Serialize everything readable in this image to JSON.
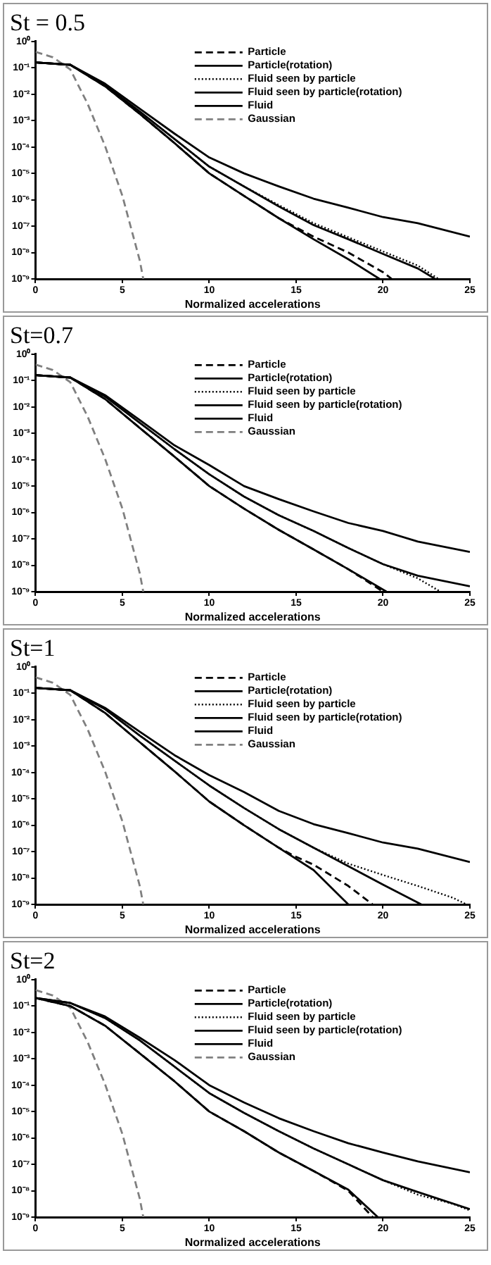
{
  "chart_data": [
    {
      "type": "line",
      "title": "St = 0.5",
      "xlabel": "Normalized accelerations",
      "xlim": [
        0,
        25
      ],
      "xticks": [
        0,
        5,
        10,
        15,
        20,
        25
      ],
      "ylim": [
        1e-09,
        1
      ],
      "yticks": [
        {
          "value": 1,
          "label": "10⁰"
        },
        {
          "value": 0.1,
          "label": "10⁻¹"
        },
        {
          "value": 0.01,
          "label": "10⁻²"
        },
        {
          "value": 0.001,
          "label": "10⁻³"
        },
        {
          "value": 0.0001,
          "label": "10⁻⁴"
        },
        {
          "value": 1e-05,
          "label": "10⁻⁵"
        },
        {
          "value": 1e-06,
          "label": "10⁻⁶"
        },
        {
          "value": 1e-07,
          "label": "10⁻⁷"
        },
        {
          "value": 1e-08,
          "label": "10⁻⁸"
        },
        {
          "value": 1e-09,
          "label": "10⁻⁹"
        }
      ],
      "log": true,
      "grid": false,
      "legend": "top right",
      "series": [
        {
          "name": "Particle",
          "color": "#000000",
          "line_style": "dashed",
          "x": [
            0,
            2,
            4,
            6,
            8,
            10,
            12,
            14,
            16,
            18,
            20,
            20.5
          ],
          "values": [
            0.16,
            0.13,
            0.02,
            0.0018,
            0.00014,
            1e-05,
            1.4e-06,
            2e-07,
            4e-08,
            1e-08,
            1.8e-09,
            1e-09
          ]
        },
        {
          "name": "Particle(rotation)",
          "color": "#000000",
          "line_style": "solid",
          "x": [
            0,
            2,
            4,
            6,
            8,
            10,
            12,
            14,
            16,
            18,
            19.8
          ],
          "values": [
            0.16,
            0.13,
            0.02,
            0.0018,
            0.00014,
            1e-05,
            1.4e-06,
            2e-07,
            3.2e-08,
            5.6e-09,
            1e-09
          ]
        },
        {
          "name": "Fluid seen by particle",
          "color": "#000000",
          "line_style": "dotted",
          "x": [
            0,
            2,
            4,
            6,
            8,
            10,
            12,
            14,
            16,
            18,
            20,
            22,
            23.2
          ],
          "values": [
            0.16,
            0.13,
            0.022,
            0.0022,
            0.0002,
            1.8e-05,
            3.2e-06,
            6.3e-07,
            1.3e-07,
            3.8e-08,
            1.1e-08,
            3.2e-09,
            1e-09
          ]
        },
        {
          "name": "Fluid seen by particle(rotation)",
          "color": "#000000",
          "line_style": "solid",
          "x": [
            0,
            2,
            4,
            6,
            8,
            10,
            12,
            14,
            16,
            18,
            20,
            22,
            23
          ],
          "values": [
            0.16,
            0.13,
            0.022,
            0.0022,
            0.0002,
            1.8e-05,
            3.2e-06,
            5.6e-07,
            1.1e-07,
            3.2e-08,
            8.9e-09,
            2.5e-09,
            1e-09
          ]
        },
        {
          "name": "Fluid",
          "color": "#000000",
          "line_style": "solid",
          "x": [
            0,
            2,
            4,
            6,
            8,
            10,
            12,
            14,
            16,
            18,
            20,
            22,
            25
          ],
          "values": [
            0.16,
            0.13,
            0.025,
            0.0028,
            0.00032,
            4e-05,
            1e-05,
            3.2e-06,
            1.1e-06,
            5e-07,
            2.2e-07,
            1.3e-07,
            4e-08
          ]
        },
        {
          "name": "Gaussian",
          "color": "#808080",
          "line_style": "dashed",
          "x": [
            0,
            1,
            2,
            3,
            4,
            5,
            6,
            6.2
          ],
          "values": [
            0.4,
            0.25,
            0.087,
            0.0043,
            0.00011,
            1.4e-06,
            5e-09,
            1e-09
          ]
        }
      ]
    },
    {
      "type": "line",
      "title": "St=0.7",
      "xlabel": "Normalized accelerations",
      "xlim": [
        0,
        25
      ],
      "xticks": [
        0,
        5,
        10,
        15,
        20,
        25
      ],
      "ylim": [
        1e-09,
        1
      ],
      "yticks": [
        {
          "value": 1,
          "label": "10⁰"
        },
        {
          "value": 0.1,
          "label": "10⁻¹"
        },
        {
          "value": 0.01,
          "label": "10⁻²"
        },
        {
          "value": 0.001,
          "label": "10⁻³"
        },
        {
          "value": 0.0001,
          "label": "10⁻⁴"
        },
        {
          "value": 1e-05,
          "label": "10⁻⁵"
        },
        {
          "value": 1e-06,
          "label": "10⁻⁶"
        },
        {
          "value": 1e-07,
          "label": "10⁻⁷"
        },
        {
          "value": 1e-08,
          "label": "10⁻⁸"
        },
        {
          "value": 1e-09,
          "label": "10⁻⁹"
        }
      ],
      "log": true,
      "grid": false,
      "legend": "top right",
      "series": [
        {
          "name": "Particle",
          "color": "#000000",
          "line_style": "dashed",
          "x": [
            0,
            2,
            4,
            6,
            8,
            10,
            12,
            14,
            16,
            18,
            20
          ],
          "values": [
            0.16,
            0.13,
            0.02,
            0.0016,
            0.00013,
            1e-05,
            1.4e-06,
            2.2e-07,
            4e-08,
            7.1e-09,
            1e-09
          ]
        },
        {
          "name": "Particle(rotation)",
          "color": "#000000",
          "line_style": "solid",
          "x": [
            0,
            2,
            4,
            6,
            8,
            10,
            12,
            14,
            16,
            18,
            20.2
          ],
          "values": [
            0.16,
            0.13,
            0.02,
            0.0016,
            0.00013,
            1e-05,
            1.4e-06,
            2.2e-07,
            4e-08,
            7.1e-09,
            1e-09
          ]
        },
        {
          "name": "Fluid seen by particle",
          "color": "#000000",
          "line_style": "dotted",
          "x": [
            0,
            2,
            4,
            6,
            8,
            10,
            12,
            14,
            16,
            18,
            20,
            22,
            23.3
          ],
          "values": [
            0.16,
            0.13,
            0.025,
            0.0025,
            0.00025,
            2.8e-05,
            4e-06,
            7.9e-07,
            2e-07,
            4.5e-08,
            1.1e-08,
            3.2e-09,
            1e-09
          ]
        },
        {
          "name": "Fluid seen by particle(rotation)",
          "color": "#000000",
          "line_style": "solid",
          "x": [
            0,
            2,
            4,
            6,
            8,
            10,
            12,
            14,
            16,
            18,
            20,
            22,
            25
          ],
          "values": [
            0.16,
            0.13,
            0.025,
            0.0025,
            0.00025,
            2.8e-05,
            4e-06,
            7.9e-07,
            2e-07,
            4.5e-08,
            1.1e-08,
            4e-09,
            1.6e-09
          ]
        },
        {
          "name": "Fluid",
          "color": "#000000",
          "line_style": "solid",
          "x": [
            0,
            2,
            4,
            6,
            8,
            10,
            12,
            14,
            16,
            18,
            20,
            22,
            25
          ],
          "values": [
            0.16,
            0.13,
            0.028,
            0.0032,
            0.00035,
            6.3e-05,
            1e-05,
            3.2e-06,
            1.1e-06,
            4e-07,
            2e-07,
            7.9e-08,
            3.2e-08
          ]
        },
        {
          "name": "Gaussian",
          "color": "#808080",
          "line_style": "dashed",
          "x": [
            0,
            1,
            2,
            3,
            4,
            5,
            6,
            6.2
          ],
          "values": [
            0.4,
            0.25,
            0.087,
            0.0043,
            0.00011,
            1.4e-06,
            5e-09,
            1e-09
          ]
        }
      ]
    },
    {
      "type": "line",
      "title": "St=1",
      "xlabel": "Normalized accelerations",
      "xlim": [
        0,
        25
      ],
      "xticks": [
        0,
        5,
        10,
        15,
        20,
        25
      ],
      "ylim": [
        1e-09,
        1
      ],
      "yticks": [
        {
          "value": 1,
          "label": "10⁰"
        },
        {
          "value": 0.1,
          "label": "10⁻¹"
        },
        {
          "value": 0.01,
          "label": "10⁻²"
        },
        {
          "value": 0.001,
          "label": "10⁻³"
        },
        {
          "value": 0.0001,
          "label": "10⁻⁴"
        },
        {
          "value": 1e-05,
          "label": "10⁻⁵"
        },
        {
          "value": 1e-06,
          "label": "10⁻⁶"
        },
        {
          "value": 1e-07,
          "label": "10⁻⁷"
        },
        {
          "value": 1e-08,
          "label": "10⁻⁸"
        },
        {
          "value": 1e-09,
          "label": "10⁻⁹"
        }
      ],
      "log": true,
      "grid": false,
      "legend": "top right",
      "series": [
        {
          "name": "Particle",
          "color": "#000000",
          "line_style": "dashed",
          "x": [
            0,
            2,
            4,
            6,
            8,
            10,
            12,
            14,
            15,
            16,
            18,
            19.4
          ],
          "values": [
            0.16,
            0.13,
            0.018,
            0.0014,
            0.00011,
            7.9e-06,
            1e-06,
            1.4e-07,
            6.3e-08,
            3.2e-08,
            5e-09,
            1e-09
          ]
        },
        {
          "name": "Particle(rotation)",
          "color": "#000000",
          "line_style": "solid",
          "x": [
            0,
            2,
            4,
            6,
            8,
            10,
            12,
            14,
            16,
            18
          ],
          "values": [
            0.16,
            0.13,
            0.018,
            0.0014,
            0.00011,
            7.9e-06,
            1e-06,
            1.4e-07,
            2e-08,
            1e-09
          ]
        },
        {
          "name": "Fluid seen by particle",
          "color": "#000000",
          "line_style": "dotted",
          "x": [
            0,
            2,
            4,
            6,
            8,
            10,
            12,
            14,
            16,
            18,
            20,
            22,
            24,
            24.8
          ],
          "values": [
            0.16,
            0.13,
            0.025,
            0.0025,
            0.00028,
            3.2e-05,
            4.5e-06,
            7.1e-07,
            1.4e-07,
            3.5e-08,
            1.3e-08,
            5e-09,
            1.8e-09,
            1e-09
          ]
        },
        {
          "name": "Fluid seen by particle(rotation)",
          "color": "#000000",
          "line_style": "solid",
          "x": [
            0,
            2,
            4,
            6,
            8,
            10,
            12,
            14,
            16,
            18,
            20,
            22.2
          ],
          "values": [
            0.16,
            0.13,
            0.025,
            0.0025,
            0.00028,
            3.2e-05,
            4.5e-06,
            7.1e-07,
            1.4e-07,
            2.8e-08,
            5.6e-09,
            1e-09
          ]
        },
        {
          "name": "Fluid",
          "color": "#000000",
          "line_style": "solid",
          "x": [
            0,
            2,
            4,
            6,
            8,
            10,
            12,
            14,
            16,
            18,
            20,
            22,
            25
          ],
          "values": [
            0.16,
            0.13,
            0.028,
            0.0035,
            0.00045,
            7.9e-05,
            1.8e-05,
            3.5e-06,
            1.1e-06,
            5e-07,
            2.2e-07,
            1.3e-07,
            4e-08
          ]
        },
        {
          "name": "Gaussian",
          "color": "#808080",
          "line_style": "dashed",
          "x": [
            0,
            1,
            2,
            3,
            4,
            5,
            6,
            6.2
          ],
          "values": [
            0.4,
            0.25,
            0.087,
            0.0043,
            0.00011,
            1.4e-06,
            5e-09,
            1e-09
          ]
        }
      ]
    },
    {
      "type": "line",
      "title": "St=2",
      "xlabel": "Normalized accelerations",
      "xlim": [
        0,
        25
      ],
      "xticks": [
        0,
        5,
        10,
        15,
        20,
        25
      ],
      "ylim": [
        1e-09,
        1
      ],
      "yticks": [
        {
          "value": 1,
          "label": "10⁰"
        },
        {
          "value": 0.1,
          "label": "10⁻¹"
        },
        {
          "value": 0.01,
          "label": "10⁻²"
        },
        {
          "value": 0.001,
          "label": "10⁻³"
        },
        {
          "value": 0.0001,
          "label": "10⁻⁴"
        },
        {
          "value": 1e-05,
          "label": "10⁻⁵"
        },
        {
          "value": 1e-06,
          "label": "10⁻⁶"
        },
        {
          "value": 1e-07,
          "label": "10⁻⁷"
        },
        {
          "value": 1e-08,
          "label": "10⁻⁸"
        },
        {
          "value": 1e-09,
          "label": "10⁻⁹"
        }
      ],
      "log": true,
      "grid": false,
      "legend": "top right",
      "series": [
        {
          "name": "Particle",
          "color": "#000000",
          "line_style": "dashed",
          "x": [
            0,
            2,
            4,
            6,
            8,
            10,
            12,
            14,
            16,
            18,
            19.4
          ],
          "values": [
            0.2,
            0.1,
            0.018,
            0.0016,
            0.00014,
            1e-05,
            1.8e-06,
            2.8e-07,
            5.6e-08,
            1e-08,
            1e-09
          ]
        },
        {
          "name": "Particle(rotation)",
          "color": "#000000",
          "line_style": "solid",
          "x": [
            0,
            2,
            4,
            6,
            8,
            10,
            12,
            14,
            16,
            18,
            19.7
          ],
          "values": [
            0.2,
            0.1,
            0.018,
            0.0016,
            0.00014,
            1e-05,
            1.8e-06,
            2.8e-07,
            5.6e-08,
            1.1e-08,
            1e-09
          ]
        },
        {
          "name": "Fluid seen by particle",
          "color": "#000000",
          "line_style": "dotted",
          "x": [
            0,
            2,
            4,
            6,
            8,
            10,
            12,
            14,
            16,
            18,
            20,
            22,
            24,
            25
          ],
          "values": [
            0.2,
            0.13,
            0.035,
            0.005,
            0.0005,
            5e-05,
            8.9e-06,
            1.8e-06,
            4e-07,
            1e-07,
            2.5e-08,
            7.1e-09,
            3.2e-09,
            1.8e-09
          ]
        },
        {
          "name": "Fluid seen by particle(rotation)",
          "color": "#000000",
          "line_style": "solid",
          "x": [
            0,
            2,
            4,
            6,
            8,
            10,
            12,
            14,
            16,
            18,
            20,
            22,
            25
          ],
          "values": [
            0.2,
            0.13,
            0.035,
            0.005,
            0.0005,
            5e-05,
            8.9e-06,
            1.8e-06,
            4e-07,
            1e-07,
            2.5e-08,
            8.9e-09,
            2e-09
          ]
        },
        {
          "name": "Fluid",
          "color": "#000000",
          "line_style": "solid",
          "x": [
            0,
            2,
            4,
            6,
            8,
            10,
            12,
            14,
            16,
            18,
            20,
            22,
            25
          ],
          "values": [
            0.2,
            0.13,
            0.04,
            0.0063,
            0.00089,
            0.0001,
            2.2e-05,
            5.6e-06,
            1.8e-06,
            6.3e-07,
            2.8e-07,
            1.3e-07,
            5e-08
          ]
        },
        {
          "name": "Gaussian",
          "color": "#808080",
          "line_style": "dashed",
          "x": [
            0,
            1,
            2,
            3,
            4,
            5,
            6,
            6.2
          ],
          "values": [
            0.4,
            0.25,
            0.087,
            0.0043,
            0.00011,
            1.4e-06,
            5e-09,
            1e-09
          ]
        }
      ]
    }
  ]
}
